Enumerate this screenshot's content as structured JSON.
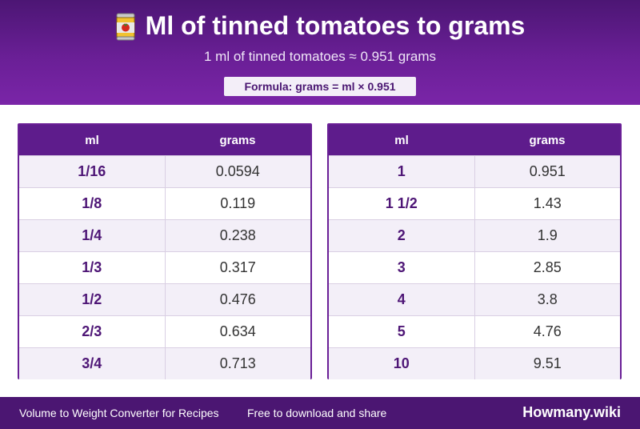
{
  "header": {
    "title": "Ml of tinned tomatoes to grams",
    "subtitle": "1 ml of tinned tomatoes ≈ 0.951 grams",
    "formula": "Formula: grams = ml × 0.951",
    "icon": "tin-can-icon"
  },
  "table_left": {
    "col_ml": "ml",
    "col_grams": "grams",
    "rows": [
      {
        "ml": "1/16",
        "grams": "0.0594"
      },
      {
        "ml": "1/8",
        "grams": "0.119"
      },
      {
        "ml": "1/4",
        "grams": "0.238"
      },
      {
        "ml": "1/3",
        "grams": "0.317"
      },
      {
        "ml": "1/2",
        "grams": "0.476"
      },
      {
        "ml": "2/3",
        "grams": "0.634"
      },
      {
        "ml": "3/4",
        "grams": "0.713"
      }
    ]
  },
  "table_right": {
    "col_ml": "ml",
    "col_grams": "grams",
    "rows": [
      {
        "ml": "1",
        "grams": "0.951"
      },
      {
        "ml": "1 1/2",
        "grams": "1.43"
      },
      {
        "ml": "2",
        "grams": "1.9"
      },
      {
        "ml": "3",
        "grams": "2.85"
      },
      {
        "ml": "4",
        "grams": "3.8"
      },
      {
        "ml": "5",
        "grams": "4.76"
      },
      {
        "ml": "10",
        "grams": "9.51"
      }
    ]
  },
  "footer": {
    "left_text": "Volume to Weight Converter for Recipes",
    "middle_text": "Free to download and share",
    "brand": "Howmany.wiki"
  },
  "colors": {
    "header_purple": "#6a1f96",
    "table_header": "#5e1c8c",
    "footer": "#4b1672",
    "ml_text": "#4e1676"
  }
}
